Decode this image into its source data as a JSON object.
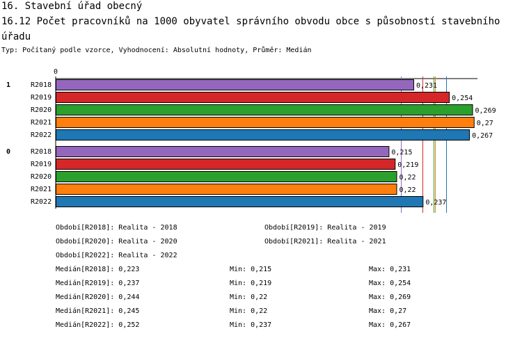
{
  "header": {
    "section": "16. Stavební úřad obecný",
    "title": "16.12 Počet pracovníků na 1000 obyvatel správního obvodu obce s působností stavebního úřadu",
    "type_line": "Typ: Počítaný podle vzorce, Vyhodnocení: Absolutní hodnoty, Průměr: Medián"
  },
  "chart_data": {
    "type": "bar",
    "orientation": "horizontal",
    "axis_zero_label": "0",
    "xlim": [
      0,
      0.28
    ],
    "groups": [
      {
        "label": "1",
        "bars": [
          {
            "name": "R2018",
            "value": 0.231,
            "label": "0,231"
          },
          {
            "name": "R2019",
            "value": 0.254,
            "label": "0,254"
          },
          {
            "name": "R2020",
            "value": 0.269,
            "label": "0,269"
          },
          {
            "name": "R2021",
            "value": 0.27,
            "label": "0,27"
          },
          {
            "name": "R2022",
            "value": 0.267,
            "label": "0,267"
          }
        ]
      },
      {
        "label": "0",
        "bars": [
          {
            "name": "R2018",
            "value": 0.215,
            "label": "0,215"
          },
          {
            "name": "R2019",
            "value": 0.219,
            "label": "0,219"
          },
          {
            "name": "R2020",
            "value": 0.22,
            "label": "0,22"
          },
          {
            "name": "R2021",
            "value": 0.22,
            "label": "0,22"
          },
          {
            "name": "R2022",
            "value": 0.237,
            "label": "0,237"
          }
        ]
      }
    ],
    "series_colors": {
      "R2018": "#9467bd",
      "R2019": "#d62728",
      "R2020": "#2ca02c",
      "R2021": "#ff7f0e",
      "R2022": "#1f77b4"
    },
    "median_lines": [
      {
        "series": "R2018",
        "value": 0.223
      },
      {
        "series": "R2019",
        "value": 0.237
      },
      {
        "series": "R2020",
        "value": 0.244
      },
      {
        "series": "R2021",
        "value": 0.245
      },
      {
        "series": "R2022",
        "value": 0.252
      }
    ]
  },
  "legend": {
    "periods": [
      "Období[R2018]: Realita - 2018",
      "Období[R2019]: Realita - 2019",
      "Období[R2020]: Realita - 2020",
      "Období[R2021]: Realita - 2021",
      "Období[R2022]: Realita - 2022"
    ],
    "stats": [
      {
        "median": "Medián[R2018]: 0,223",
        "min": "Min: 0,215",
        "max": "Max: 0,231"
      },
      {
        "median": "Medián[R2019]: 0,237",
        "min": "Min: 0,219",
        "max": "Max: 0,254"
      },
      {
        "median": "Medián[R2020]: 0,244",
        "min": "Min: 0,22",
        "max": "Max: 0,269"
      },
      {
        "median": "Medián[R2021]: 0,245",
        "min": "Min: 0,22",
        "max": "Max: 0,27"
      },
      {
        "median": "Medián[R2022]: 0,252",
        "min": "Min: 0,237",
        "max": "Max: 0,267"
      }
    ]
  }
}
